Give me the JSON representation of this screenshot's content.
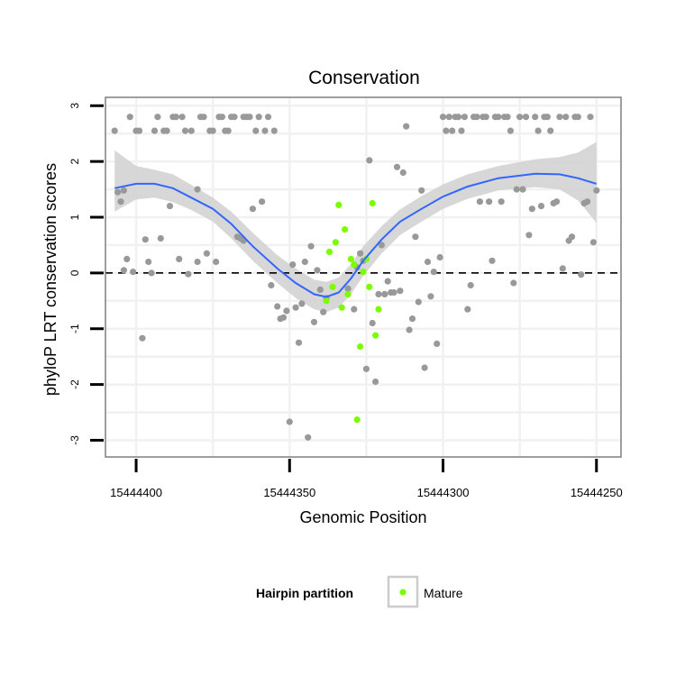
{
  "chart_data": {
    "type": "scatter",
    "title": "Conservation",
    "xlabel": "Genomic Position",
    "ylabel": "phyloP LRT conservation scores",
    "xlim": [
      15444410,
      15444242
    ],
    "ylim": [
      -3.3,
      3.15
    ],
    "x_reversed": true,
    "x_ticks": [
      15444400,
      15444350,
      15444300,
      15444250
    ],
    "y_ticks": [
      -3,
      -2,
      -1,
      0,
      1,
      2,
      3
    ],
    "reference_line_y": 0,
    "grid": true,
    "legend": {
      "title": "Hairpin partition",
      "position": "bottom",
      "entries": [
        "Mature"
      ]
    },
    "colors": {
      "other": "#999999",
      "mature": "#7cfc00",
      "smooth": "#3366ff",
      "band": "#d3d3d3",
      "frame": "#7f7f7f"
    },
    "series": [
      {
        "name": "",
        "color": "#999999",
        "points": [
          [
            15444407,
            2.55
          ],
          [
            15444406,
            1.45
          ],
          [
            15444405,
            1.28
          ],
          [
            15444404,
            0.05
          ],
          [
            15444404,
            1.48
          ],
          [
            15444403,
            0.25
          ],
          [
            15444402,
            2.8
          ],
          [
            15444401,
            0.02
          ],
          [
            15444400,
            2.55
          ],
          [
            15444399,
            2.55
          ],
          [
            15444398,
            -1.17
          ],
          [
            15444397,
            0.6
          ],
          [
            15444396,
            0.2
          ],
          [
            15444395,
            0
          ],
          [
            15444394,
            2.55
          ],
          [
            15444393,
            2.8
          ],
          [
            15444392,
            0.62
          ],
          [
            15444391,
            2.55
          ],
          [
            15444390,
            2.55
          ],
          [
            15444389,
            1.2
          ],
          [
            15444388,
            2.8
          ],
          [
            15444387,
            2.8
          ],
          [
            15444386,
            0.25
          ],
          [
            15444385,
            2.8
          ],
          [
            15444384,
            2.55
          ],
          [
            15444383,
            -0.02
          ],
          [
            15444382,
            2.55
          ],
          [
            15444380,
            1.5
          ],
          [
            15444380,
            0.2
          ],
          [
            15444379,
            2.8
          ],
          [
            15444378,
            2.8
          ],
          [
            15444377,
            0.35
          ],
          [
            15444376,
            2.55
          ],
          [
            15444375,
            2.55
          ],
          [
            15444374,
            0.2
          ],
          [
            15444373,
            2.8
          ],
          [
            15444372,
            2.8
          ],
          [
            15444371,
            2.55
          ],
          [
            15444370,
            2.55
          ],
          [
            15444369,
            2.8
          ],
          [
            15444368,
            2.8
          ],
          [
            15444367,
            0.65
          ],
          [
            15444366,
            0.62
          ],
          [
            15444365,
            0.58
          ],
          [
            15444365,
            2.8
          ],
          [
            15444364,
            2.8
          ],
          [
            15444363,
            2.8
          ],
          [
            15444362,
            1.15
          ],
          [
            15444361,
            2.55
          ],
          [
            15444360,
            2.8
          ],
          [
            15444359,
            1.28
          ],
          [
            15444358,
            2.55
          ],
          [
            15444357,
            2.8
          ],
          [
            15444356,
            -0.22
          ],
          [
            15444355,
            2.55
          ],
          [
            15444354,
            -0.6
          ],
          [
            15444353,
            -0.82
          ],
          [
            15444352,
            -0.8
          ],
          [
            15444351,
            -0.68
          ],
          [
            15444350,
            -2.67
          ],
          [
            15444349,
            0.15
          ],
          [
            15444348,
            -0.62
          ],
          [
            15444347,
            -1.25
          ],
          [
            15444346,
            -0.55
          ],
          [
            15444345,
            0.2
          ],
          [
            15444344,
            -2.95
          ],
          [
            15444343,
            0.48
          ],
          [
            15444342,
            -0.88
          ],
          [
            15444341,
            0.05
          ],
          [
            15444340,
            -0.3
          ],
          [
            15444339,
            -0.7
          ],
          [
            15444338,
            -0.45
          ],
          [
            15444331,
            -0.28
          ],
          [
            15444329,
            -0.65
          ],
          [
            15444328,
            0.1
          ],
          [
            15444327,
            0.35
          ],
          [
            15444326,
            0.22
          ],
          [
            15444325,
            -1.72
          ],
          [
            15444324,
            2.02
          ],
          [
            15444323,
            -0.9
          ],
          [
            15444322,
            -1.95
          ],
          [
            15444321,
            -0.38
          ],
          [
            15444320,
            0.5
          ],
          [
            15444319,
            -0.38
          ],
          [
            15444318,
            -0.15
          ],
          [
            15444317,
            -0.35
          ],
          [
            15444316,
            -0.35
          ],
          [
            15444315,
            1.9
          ],
          [
            15444314,
            -0.32
          ],
          [
            15444313,
            1.8
          ],
          [
            15444312,
            2.63
          ],
          [
            15444311,
            -1.02
          ],
          [
            15444310,
            -0.82
          ],
          [
            15444309,
            0.65
          ],
          [
            15444308,
            -0.52
          ],
          [
            15444307,
            1.48
          ],
          [
            15444306,
            -1.7
          ],
          [
            15444305,
            0.2
          ],
          [
            15444304,
            -0.42
          ],
          [
            15444303,
            0.02
          ],
          [
            15444302,
            -1.27
          ],
          [
            15444301,
            0.28
          ],
          [
            15444300,
            2.8
          ],
          [
            15444299,
            2.55
          ],
          [
            15444298,
            2.8
          ],
          [
            15444297,
            2.55
          ],
          [
            15444296,
            2.8
          ],
          [
            15444295,
            2.8
          ],
          [
            15444294,
            2.55
          ],
          [
            15444293,
            2.8
          ],
          [
            15444292,
            -0.65
          ],
          [
            15444291,
            -0.22
          ],
          [
            15444290,
            2.8
          ],
          [
            15444289,
            2.8
          ],
          [
            15444288,
            1.28
          ],
          [
            15444287,
            2.8
          ],
          [
            15444286,
            2.8
          ],
          [
            15444285,
            1.28
          ],
          [
            15444284,
            0.22
          ],
          [
            15444283,
            2.8
          ],
          [
            15444282,
            2.8
          ],
          [
            15444281,
            1.28
          ],
          [
            15444280,
            2.8
          ],
          [
            15444279,
            2.8
          ],
          [
            15444278,
            2.55
          ],
          [
            15444277,
            -0.18
          ],
          [
            15444276,
            1.5
          ],
          [
            15444275,
            2.8
          ],
          [
            15444274,
            1.5
          ],
          [
            15444273,
            2.8
          ],
          [
            15444272,
            0.68
          ],
          [
            15444271,
            1.15
          ],
          [
            15444270,
            2.8
          ],
          [
            15444269,
            2.55
          ],
          [
            15444268,
            1.2
          ],
          [
            15444267,
            2.8
          ],
          [
            15444266,
            2.8
          ],
          [
            15444265,
            2.55
          ],
          [
            15444264,
            1.25
          ],
          [
            15444263,
            1.28
          ],
          [
            15444262,
            2.8
          ],
          [
            15444261,
            0.08
          ],
          [
            15444260,
            2.8
          ],
          [
            15444259,
            0.58
          ],
          [
            15444258,
            0.65
          ],
          [
            15444257,
            2.8
          ],
          [
            15444256,
            2.8
          ],
          [
            15444255,
            -0.03
          ],
          [
            15444254,
            1.25
          ],
          [
            15444253,
            1.28
          ],
          [
            15444252,
            2.8
          ],
          [
            15444251,
            0.55
          ],
          [
            15444250,
            1.48
          ]
        ]
      },
      {
        "name": "Mature",
        "color": "#7cfc00",
        "points": [
          [
            15444338,
            -0.5
          ],
          [
            15444337,
            0.38
          ],
          [
            15444336,
            -0.25
          ],
          [
            15444335,
            0.55
          ],
          [
            15444334,
            1.22
          ],
          [
            15444333,
            -0.62
          ],
          [
            15444332,
            0.78
          ],
          [
            15444331,
            -0.38
          ],
          [
            15444330,
            0.25
          ],
          [
            15444329,
            0.15
          ],
          [
            15444328,
            -2.63
          ],
          [
            15444327,
            -1.32
          ],
          [
            15444326,
            0.02
          ],
          [
            15444325,
            0.25
          ],
          [
            15444324,
            -0.25
          ],
          [
            15444323,
            1.25
          ],
          [
            15444322,
            -1.12
          ],
          [
            15444321,
            -0.65
          ]
        ]
      }
    ],
    "smooth": [
      [
        15444407,
        1.52
      ],
      [
        15444400,
        1.6
      ],
      [
        15444394,
        1.6
      ],
      [
        15444388,
        1.52
      ],
      [
        15444382,
        1.35
      ],
      [
        15444375,
        1.15
      ],
      [
        15444369,
        0.88
      ],
      [
        15444362,
        0.48
      ],
      [
        15444354,
        0.08
      ],
      [
        15444348,
        -0.18
      ],
      [
        15444342,
        -0.38
      ],
      [
        15444338,
        -0.43
      ],
      [
        15444334,
        -0.35
      ],
      [
        15444330,
        -0.1
      ],
      [
        15444326,
        0.22
      ],
      [
        15444320,
        0.6
      ],
      [
        15444314,
        0.92
      ],
      [
        15444307,
        1.15
      ],
      [
        15444300,
        1.37
      ],
      [
        15444292,
        1.55
      ],
      [
        15444282,
        1.7
      ],
      [
        15444270,
        1.78
      ],
      [
        15444262,
        1.77
      ],
      [
        15444256,
        1.7
      ],
      [
        15444250,
        1.6
      ]
    ],
    "band": [
      [
        15444407,
        1.1,
        2.2
      ],
      [
        15444400,
        1.32,
        1.92
      ],
      [
        15444394,
        1.35,
        1.85
      ],
      [
        15444388,
        1.27,
        1.77
      ],
      [
        15444382,
        1.13,
        1.58
      ],
      [
        15444375,
        0.92,
        1.35
      ],
      [
        15444369,
        0.62,
        1.1
      ],
      [
        15444362,
        0.22,
        0.72
      ],
      [
        15444354,
        -0.18,
        0.32
      ],
      [
        15444348,
        -0.45,
        0.08
      ],
      [
        15444342,
        -0.65,
        -0.12
      ],
      [
        15444338,
        -0.7,
        -0.16
      ],
      [
        15444334,
        -0.62,
        -0.08
      ],
      [
        15444330,
        -0.38,
        0.16
      ],
      [
        15444326,
        -0.05,
        0.48
      ],
      [
        15444320,
        0.35,
        0.84
      ],
      [
        15444314,
        0.68,
        1.14
      ],
      [
        15444307,
        0.92,
        1.38
      ],
      [
        15444300,
        1.15,
        1.59
      ],
      [
        15444292,
        1.33,
        1.77
      ],
      [
        15444282,
        1.48,
        1.92
      ],
      [
        15444270,
        1.54,
        2.04
      ],
      [
        15444262,
        1.5,
        2.08
      ],
      [
        15444256,
        1.3,
        2.16
      ],
      [
        15444250,
        0.9,
        2.35
      ]
    ]
  }
}
